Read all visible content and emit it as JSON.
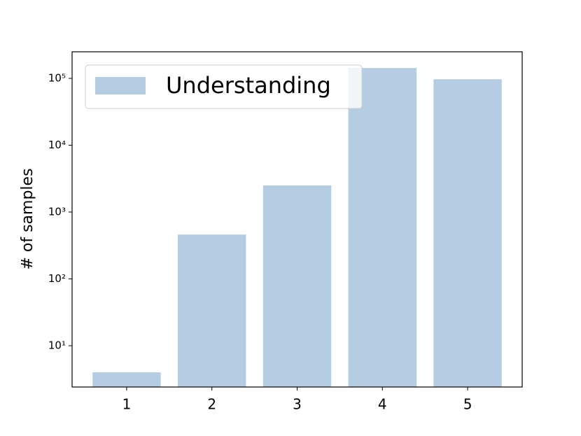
{
  "chart_data": {
    "type": "bar",
    "y_label": "# of samples",
    "categories": [
      "1",
      "2",
      "3",
      "4",
      "5"
    ],
    "series": [
      {
        "name": "Understanding",
        "color": "#b4cde2",
        "values": [
          4,
          460,
          2500,
          143000,
          97000
        ]
      }
    ],
    "log_scale_y": true,
    "ylim": [
      2.41,
      250000
    ],
    "yticks": [
      {
        "value": 10,
        "label": "10¹"
      },
      {
        "value": 100,
        "label": "10²"
      },
      {
        "value": 1000,
        "label": "10³"
      },
      {
        "value": 10000,
        "label": "10⁴"
      },
      {
        "value": 100000,
        "label": "10⁵"
      }
    ],
    "legend": "upper left"
  }
}
